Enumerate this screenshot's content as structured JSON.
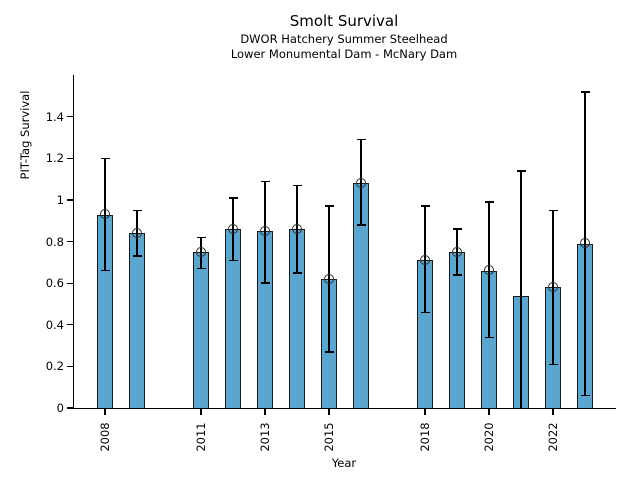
{
  "chart_data": {
    "type": "bar",
    "title": "Smolt Survival",
    "subtitle1": "DWOR Hatchery Summer Steelhead",
    "subtitle2": "Lower Monumental Dam - McNary Dam",
    "xlabel": "Year",
    "ylabel": "PIT-Tag Survival",
    "ylim": [
      0,
      1.6
    ],
    "grid": false,
    "legend": "none",
    "bar_fill": "#5BA6D1",
    "bar_edge": "#1a1a1a",
    "error_color": "#000000",
    "yticks": [
      {
        "v": 0,
        "label": "0"
      },
      {
        "v": 0.2,
        "label": "0.2"
      },
      {
        "v": 0.4,
        "label": "0.4"
      },
      {
        "v": 0.6,
        "label": "0.6"
      },
      {
        "v": 0.8,
        "label": "0.8"
      },
      {
        "v": 1.0,
        "label": "1"
      },
      {
        "v": 1.2,
        "label": "1.2"
      },
      {
        "v": 1.4,
        "label": "1.4"
      }
    ],
    "xticks": [
      2008,
      2011,
      2013,
      2015,
      2018,
      2020,
      2022
    ],
    "series": [
      {
        "year": 2008,
        "value": 0.93,
        "lo": 0.66,
        "hi": 1.2,
        "marker": true,
        "cap_lo": true
      },
      {
        "year": 2009,
        "value": 0.84,
        "lo": 0.73,
        "hi": 0.95,
        "marker": true,
        "cap_lo": true
      },
      {
        "year": 2011,
        "value": 0.75,
        "lo": 0.67,
        "hi": 0.82,
        "marker": true,
        "cap_lo": true
      },
      {
        "year": 2012,
        "value": 0.86,
        "lo": 0.71,
        "hi": 1.01,
        "marker": true,
        "cap_lo": true
      },
      {
        "year": 2013,
        "value": 0.85,
        "lo": 0.6,
        "hi": 1.09,
        "marker": true,
        "cap_lo": true
      },
      {
        "year": 2014,
        "value": 0.86,
        "lo": 0.65,
        "hi": 1.07,
        "marker": true,
        "cap_lo": true
      },
      {
        "year": 2015,
        "value": 0.62,
        "lo": 0.27,
        "hi": 0.97,
        "marker": true,
        "cap_lo": true
      },
      {
        "year": 2016,
        "value": 1.08,
        "lo": 0.88,
        "hi": 1.29,
        "marker": true,
        "cap_lo": true
      },
      {
        "year": 2018,
        "value": 0.71,
        "lo": 0.46,
        "hi": 0.97,
        "marker": true,
        "cap_lo": true
      },
      {
        "year": 2019,
        "value": 0.75,
        "lo": 0.64,
        "hi": 0.86,
        "marker": true,
        "cap_lo": true
      },
      {
        "year": 2020,
        "value": 0.66,
        "lo": 0.34,
        "hi": 0.99,
        "marker": true,
        "cap_lo": true
      },
      {
        "year": 2021,
        "value": 0.54,
        "lo": 0.0,
        "hi": 1.14,
        "marker": false,
        "cap_lo": false
      },
      {
        "year": 2022,
        "value": 0.58,
        "lo": 0.21,
        "hi": 0.95,
        "marker": true,
        "cap_lo": true
      },
      {
        "year": 2023,
        "value": 0.79,
        "lo": 0.06,
        "hi": 1.52,
        "marker": true,
        "cap_lo": true
      }
    ]
  }
}
